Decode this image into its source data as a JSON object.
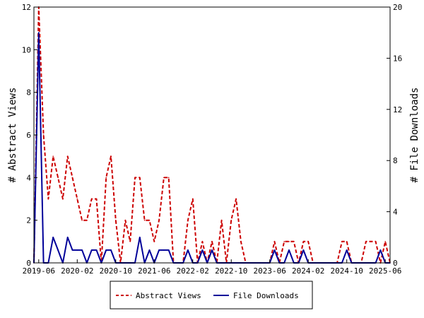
{
  "chart_data": {
    "type": "line",
    "xlabel": "",
    "ylabel_left": "# Abstract Views",
    "ylabel_right": "# File Downloads",
    "y_left_lim": [
      0,
      12
    ],
    "y_left_ticks": [
      "0",
      "2",
      "4",
      "6",
      "8",
      "10",
      "12"
    ],
    "y_right_lim": [
      0,
      20
    ],
    "y_right_ticks": [
      "0",
      "4",
      "8",
      "12",
      "16",
      "20"
    ],
    "x_start": "2019-05",
    "x_end": "2025-07",
    "x_tick_labels": [
      "2019-06",
      "2020-02",
      "2020-10",
      "2021-06",
      "2022-02",
      "2022-10",
      "2023-06",
      "2024-02",
      "2024-10",
      "2025-06"
    ],
    "legend_position": "bottom",
    "grid": false,
    "series": [
      {
        "name": "Abstract Views",
        "axis": "left",
        "color": "#cc0000",
        "style": "dashed",
        "points": [
          [
            "2019-05",
            0
          ],
          [
            "2019-06",
            12
          ],
          [
            "2019-07",
            6
          ],
          [
            "2019-08",
            3
          ],
          [
            "2019-09",
            5
          ],
          [
            "2019-10",
            4
          ],
          [
            "2019-11",
            3
          ],
          [
            "2019-12",
            5
          ],
          [
            "2020-01",
            4
          ],
          [
            "2020-02",
            3
          ],
          [
            "2020-03",
            2
          ],
          [
            "2020-04",
            2
          ],
          [
            "2020-05",
            3
          ],
          [
            "2020-06",
            3
          ],
          [
            "2020-07",
            0
          ],
          [
            "2020-08",
            4
          ],
          [
            "2020-09",
            5
          ],
          [
            "2020-10",
            2
          ],
          [
            "2020-11",
            0
          ],
          [
            "2020-12",
            2
          ],
          [
            "2021-01",
            1
          ],
          [
            "2021-02",
            4
          ],
          [
            "2021-03",
            4
          ],
          [
            "2021-04",
            2
          ],
          [
            "2021-05",
            2
          ],
          [
            "2021-06",
            1
          ],
          [
            "2021-07",
            2
          ],
          [
            "2021-08",
            4
          ],
          [
            "2021-09",
            4
          ],
          [
            "2021-10",
            0
          ],
          [
            "2021-11",
            0
          ],
          [
            "2021-12",
            0
          ],
          [
            "2022-01",
            2
          ],
          [
            "2022-02",
            3
          ],
          [
            "2022-03",
            0
          ],
          [
            "2022-04",
            1
          ],
          [
            "2022-05",
            0
          ],
          [
            "2022-06",
            1
          ],
          [
            "2022-07",
            0
          ],
          [
            "2022-08",
            2
          ],
          [
            "2022-09",
            0
          ],
          [
            "2022-10",
            2
          ],
          [
            "2022-11",
            3
          ],
          [
            "2022-12",
            1
          ],
          [
            "2023-01",
            0
          ],
          [
            "2023-02",
            0
          ],
          [
            "2023-03",
            0
          ],
          [
            "2023-04",
            0
          ],
          [
            "2023-05",
            0
          ],
          [
            "2023-06",
            0
          ],
          [
            "2023-07",
            1
          ],
          [
            "2023-08",
            0
          ],
          [
            "2023-09",
            1
          ],
          [
            "2023-10",
            1
          ],
          [
            "2023-11",
            1
          ],
          [
            "2023-12",
            0
          ],
          [
            "2024-01",
            1
          ],
          [
            "2024-02",
            1
          ],
          [
            "2024-03",
            0
          ],
          [
            "2024-04",
            0
          ],
          [
            "2024-05",
            0
          ],
          [
            "2024-06",
            0
          ],
          [
            "2024-07",
            0
          ],
          [
            "2024-08",
            0
          ],
          [
            "2024-09",
            1
          ],
          [
            "2024-10",
            1
          ],
          [
            "2024-11",
            0
          ],
          [
            "2024-12",
            0
          ],
          [
            "2025-01",
            0
          ],
          [
            "2025-02",
            1
          ],
          [
            "2025-03",
            1
          ],
          [
            "2025-04",
            1
          ],
          [
            "2025-05",
            0
          ],
          [
            "2025-06",
            1
          ],
          [
            "2025-07",
            0
          ]
        ]
      },
      {
        "name": "File Downloads",
        "axis": "right",
        "color": "#000099",
        "style": "solid",
        "points": [
          [
            "2019-05",
            0
          ],
          [
            "2019-06",
            18
          ],
          [
            "2019-07",
            0
          ],
          [
            "2019-08",
            0
          ],
          [
            "2019-09",
            2
          ],
          [
            "2019-10",
            1
          ],
          [
            "2019-11",
            0
          ],
          [
            "2019-12",
            2
          ],
          [
            "2020-01",
            1
          ],
          [
            "2020-02",
            1
          ],
          [
            "2020-03",
            1
          ],
          [
            "2020-04",
            0
          ],
          [
            "2020-05",
            1
          ],
          [
            "2020-06",
            1
          ],
          [
            "2020-07",
            0
          ],
          [
            "2020-08",
            1
          ],
          [
            "2020-09",
            1
          ],
          [
            "2020-10",
            0
          ],
          [
            "2020-11",
            0
          ],
          [
            "2020-12",
            0
          ],
          [
            "2021-01",
            0
          ],
          [
            "2021-02",
            0
          ],
          [
            "2021-03",
            2
          ],
          [
            "2021-04",
            0
          ],
          [
            "2021-05",
            1
          ],
          [
            "2021-06",
            0
          ],
          [
            "2021-07",
            1
          ],
          [
            "2021-08",
            1
          ],
          [
            "2021-09",
            1
          ],
          [
            "2021-10",
            0
          ],
          [
            "2021-11",
            0
          ],
          [
            "2021-12",
            0
          ],
          [
            "2022-01",
            1
          ],
          [
            "2022-02",
            0
          ],
          [
            "2022-03",
            0
          ],
          [
            "2022-04",
            1
          ],
          [
            "2022-05",
            0
          ],
          [
            "2022-06",
            1
          ],
          [
            "2022-07",
            0
          ],
          [
            "2022-08",
            0
          ],
          [
            "2022-09",
            0
          ],
          [
            "2022-10",
            0
          ],
          [
            "2022-11",
            0
          ],
          [
            "2022-12",
            0
          ],
          [
            "2023-01",
            0
          ],
          [
            "2023-02",
            0
          ],
          [
            "2023-03",
            0
          ],
          [
            "2023-04",
            0
          ],
          [
            "2023-05",
            0
          ],
          [
            "2023-06",
            0
          ],
          [
            "2023-07",
            1
          ],
          [
            "2023-08",
            0
          ],
          [
            "2023-09",
            0
          ],
          [
            "2023-10",
            1
          ],
          [
            "2023-11",
            0
          ],
          [
            "2023-12",
            0
          ],
          [
            "2024-01",
            1
          ],
          [
            "2024-02",
            0
          ],
          [
            "2024-03",
            0
          ],
          [
            "2024-04",
            0
          ],
          [
            "2024-05",
            0
          ],
          [
            "2024-06",
            0
          ],
          [
            "2024-07",
            0
          ],
          [
            "2024-08",
            0
          ],
          [
            "2024-09",
            0
          ],
          [
            "2024-10",
            1
          ],
          [
            "2024-11",
            0
          ],
          [
            "2024-12",
            0
          ],
          [
            "2025-01",
            0
          ],
          [
            "2025-02",
            0
          ],
          [
            "2025-03",
            0
          ],
          [
            "2025-04",
            0
          ],
          [
            "2025-05",
            1
          ],
          [
            "2025-06",
            0
          ],
          [
            "2025-07",
            0
          ]
        ]
      }
    ]
  }
}
